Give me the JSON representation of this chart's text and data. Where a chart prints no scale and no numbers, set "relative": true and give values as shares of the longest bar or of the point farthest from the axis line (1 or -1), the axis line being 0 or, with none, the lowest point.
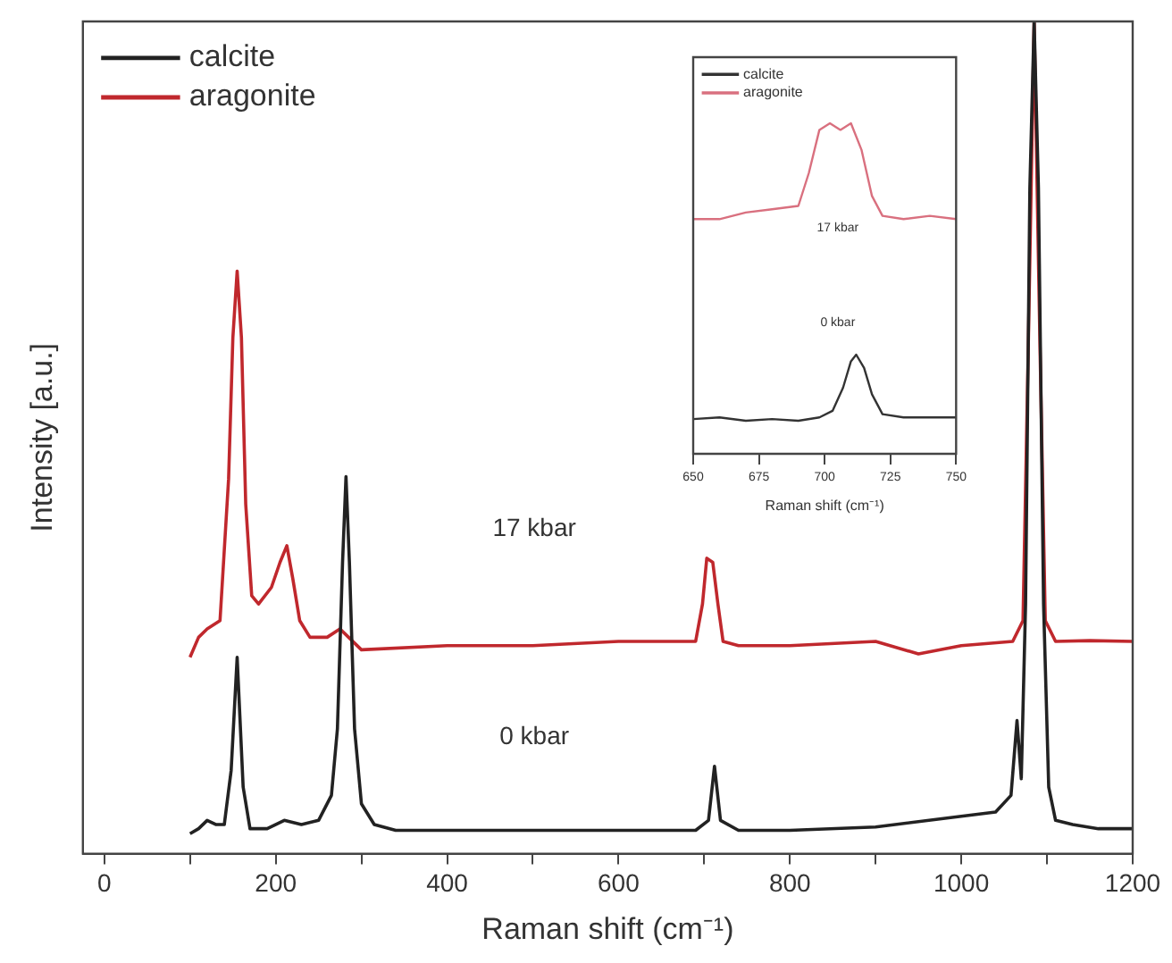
{
  "chart_data": [
    {
      "type": "line",
      "xlabel": "Raman shift (cm⁻¹)",
      "ylabel": "Intensity [a.u.]",
      "relative": true,
      "legend": "top left",
      "grid": false,
      "marker": "none",
      "line_style": "solid",
      "xlim": [
        -25,
        1200
      ],
      "xticks": [
        0,
        {
          "value": 100,
          "label": null
        },
        200,
        {
          "value": 300,
          "label": null
        },
        400,
        {
          "value": 500,
          "label": null
        },
        600,
        {
          "value": 700,
          "label": null
        },
        800,
        {
          "value": 900,
          "label": null
        },
        1000,
        {
          "value": 1100,
          "label": null
        },
        1200
      ],
      "annotations": [
        "17 kbar",
        "0 kbar"
      ],
      "series": [
        {
          "name": "calcite",
          "color": "#222222",
          "x": [
            100,
            110,
            120,
            130,
            140,
            148,
            155,
            162,
            170,
            190,
            210,
            230,
            250,
            265,
            272,
            278,
            282,
            286,
            292,
            300,
            315,
            340,
            400,
            500,
            600,
            690,
            705,
            712,
            719,
            740,
            800,
            900,
            1000,
            1040,
            1058,
            1065,
            1070,
            1075,
            1080,
            1085,
            1090,
            1096,
            1102,
            1110,
            1130,
            1160,
            1200
          ],
          "values": [
            0.024,
            0.03,
            0.04,
            0.035,
            0.035,
            0.1,
            0.236,
            0.08,
            0.03,
            0.03,
            0.04,
            0.035,
            0.04,
            0.07,
            0.15,
            0.35,
            0.453,
            0.35,
            0.15,
            0.06,
            0.035,
            0.028,
            0.028,
            0.028,
            0.028,
            0.028,
            0.04,
            0.105,
            0.04,
            0.028,
            0.028,
            0.032,
            0.045,
            0.05,
            0.07,
            0.16,
            0.09,
            0.3,
            0.8,
            1.0,
            0.8,
            0.3,
            0.08,
            0.04,
            0.035,
            0.03,
            0.03
          ]
        },
        {
          "name": "aragonite",
          "color": "#c0282d",
          "x": [
            100,
            110,
            120,
            135,
            145,
            150,
            155,
            160,
            165,
            172,
            180,
            195,
            205,
            213,
            220,
            228,
            240,
            260,
            275,
            285,
            300,
            400,
            500,
            600,
            690,
            698,
            703,
            710,
            716,
            722,
            740,
            800,
            900,
            950,
            1000,
            1060,
            1072,
            1078,
            1085,
            1092,
            1098,
            1110,
            1150,
            1200
          ],
          "values": [
            0.236,
            0.26,
            0.27,
            0.28,
            0.45,
            0.62,
            0.7,
            0.62,
            0.42,
            0.31,
            0.3,
            0.32,
            0.35,
            0.37,
            0.33,
            0.28,
            0.26,
            0.26,
            0.27,
            0.26,
            0.245,
            0.25,
            0.25,
            0.255,
            0.255,
            0.3,
            0.355,
            0.35,
            0.3,
            0.255,
            0.25,
            0.25,
            0.255,
            0.24,
            0.25,
            0.255,
            0.28,
            0.6,
            1.0,
            0.6,
            0.28,
            0.255,
            0.256,
            0.255
          ]
        }
      ]
    },
    {
      "type": "line",
      "xlabel": "Raman shift (cm⁻¹)",
      "relative": true,
      "legend": "top left",
      "grid": false,
      "marker": "none",
      "line_style": "solid",
      "xlim": [
        650,
        750
      ],
      "xticks": [
        650,
        675,
        700,
        725,
        750
      ],
      "annotations": [
        "17 kbar",
        "0 kbar"
      ],
      "series": [
        {
          "name": "calcite",
          "color": "#333333",
          "x": [
            650,
            660,
            670,
            680,
            690,
            698,
            703,
            707,
            710,
            712,
            715,
            718,
            722,
            730,
            740,
            750
          ],
          "values": [
            0.105,
            0.11,
            0.1,
            0.105,
            0.1,
            0.11,
            0.13,
            0.2,
            0.28,
            0.3,
            0.26,
            0.18,
            0.12,
            0.11,
            0.11,
            0.11
          ]
        },
        {
          "name": "aragonite",
          "color": "#d9707f",
          "x": [
            650,
            660,
            670,
            680,
            690,
            694,
            698,
            702,
            706,
            710,
            714,
            718,
            722,
            730,
            740,
            750
          ],
          "values": [
            0.71,
            0.71,
            0.73,
            0.74,
            0.75,
            0.85,
            0.98,
            1.0,
            0.98,
            1.0,
            0.92,
            0.78,
            0.72,
            0.71,
            0.72,
            0.71
          ]
        }
      ]
    }
  ]
}
